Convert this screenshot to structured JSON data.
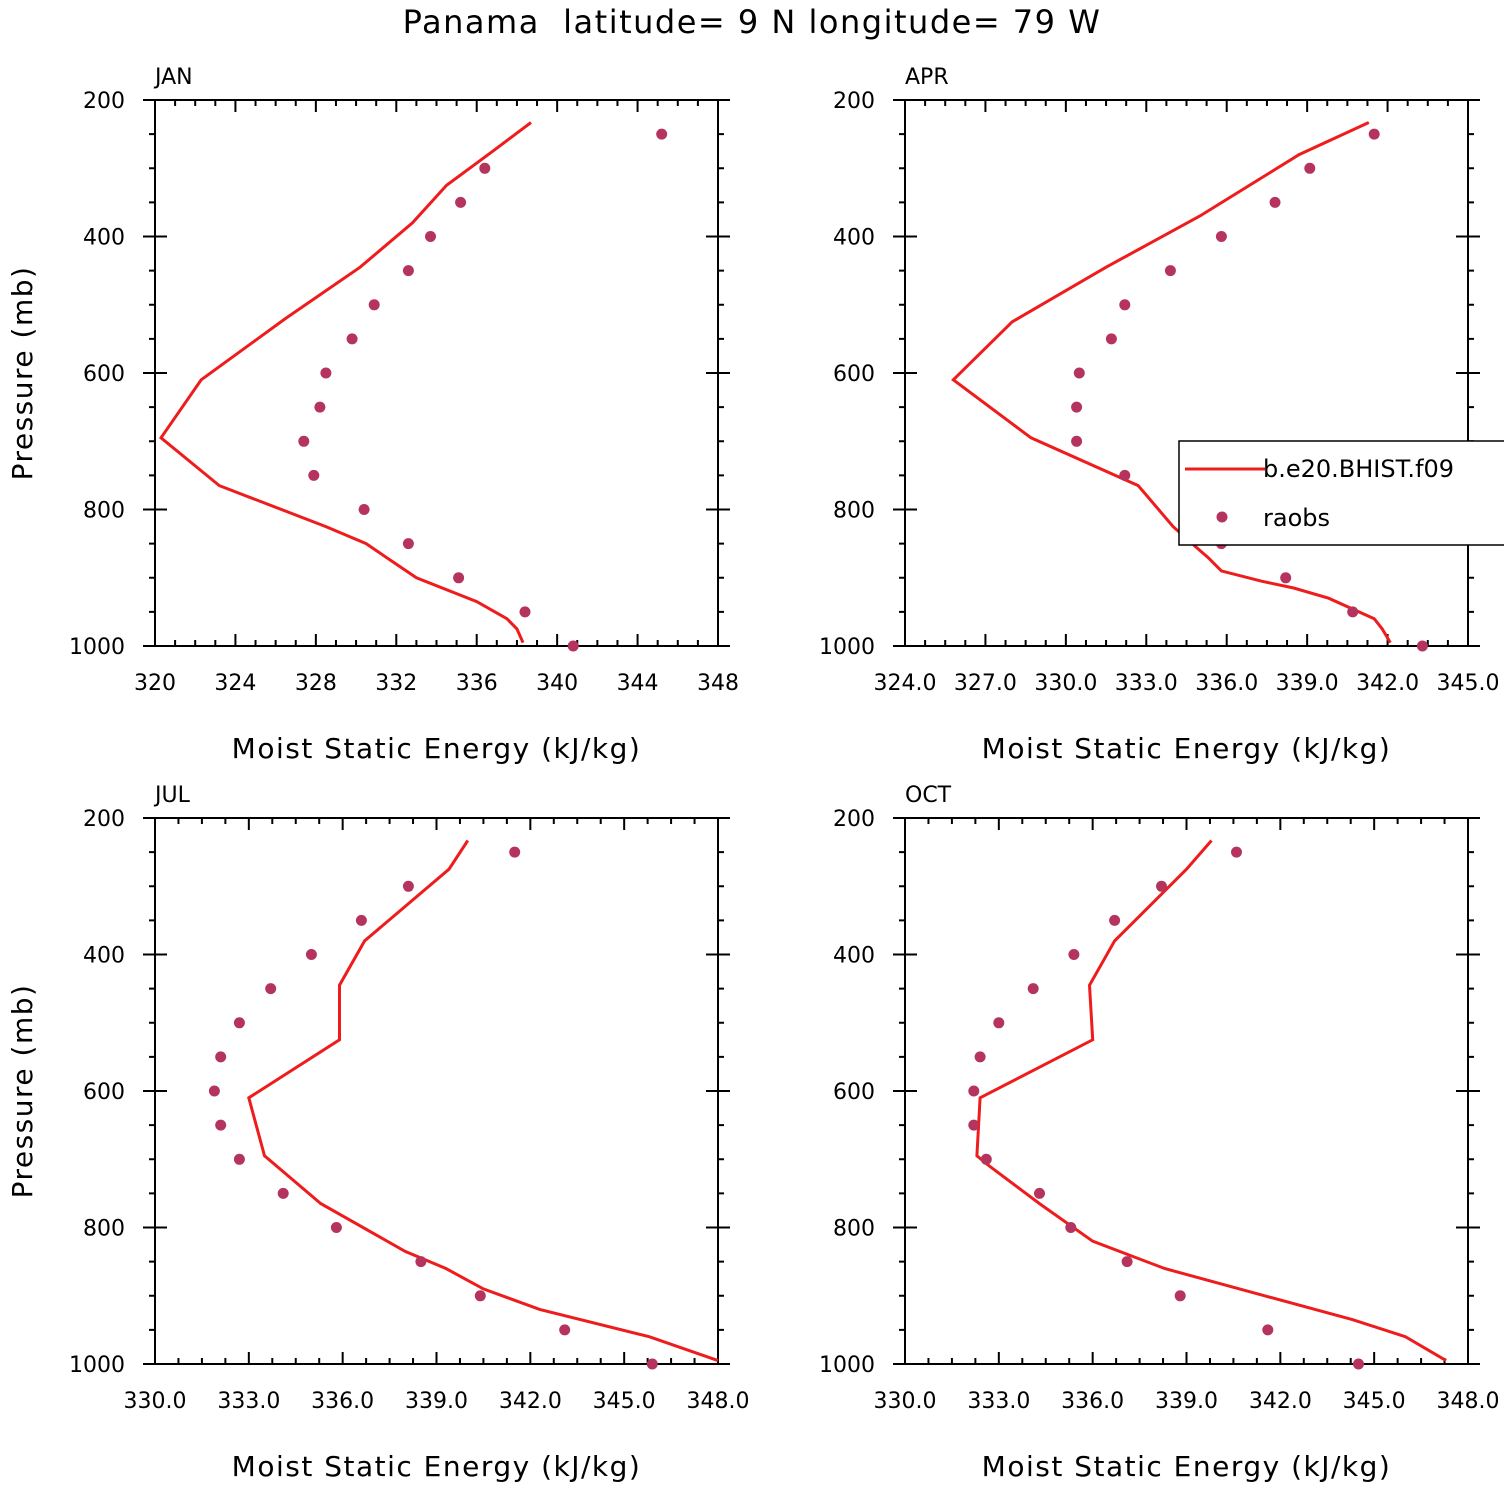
{
  "title": "Panama  latitude= 9 N longitude= 79 W",
  "colors": {
    "model": "#ee1c1c",
    "obs": "#b5345e"
  },
  "chart_data": [
    {
      "type": "line",
      "panel": "JAN",
      "xlabel": "Moist Static Energy (kJ/kg)",
      "ylabel": "Pressure (mb)",
      "xlim": [
        320,
        348
      ],
      "ylim": [
        1000,
        200
      ],
      "xticks": [
        "320",
        "324",
        "328",
        "332",
        "336",
        "340",
        "344",
        "348"
      ],
      "yticks": [
        "200",
        "400",
        "600",
        "800",
        "1000"
      ],
      "series": [
        {
          "name": "b.e20.BHIST.f09",
          "kind": "line",
          "x": [
            338.3,
            338.0,
            337.5,
            336.0,
            333.0,
            331.0,
            330.5,
            328.5,
            323.2,
            320.3,
            322.3,
            326.5,
            330.2,
            332.8,
            334.5,
            336.8,
            338.7
          ],
          "y": [
            995,
            975,
            960,
            935,
            900,
            860,
            850,
            825,
            765,
            695,
            610,
            520,
            445,
            380,
            325,
            275,
            233
          ]
        },
        {
          "name": "raobs",
          "kind": "points",
          "x": [
            340.8,
            338.4,
            335.1,
            332.6,
            330.4,
            327.9,
            327.4,
            328.2,
            328.5,
            329.8,
            330.9,
            332.6,
            333.7,
            335.2,
            336.4,
            345.2
          ],
          "y": [
            1000,
            950,
            900,
            850,
            800,
            750,
            700,
            650,
            600,
            550,
            500,
            450,
            400,
            350,
            300,
            250
          ]
        }
      ]
    },
    {
      "type": "line",
      "panel": "APR",
      "xlabel": "Moist Static Energy (kJ/kg)",
      "ylabel": "",
      "xlim": [
        324,
        345
      ],
      "ylim": [
        1000,
        200
      ],
      "xticks": [
        "324.0",
        "327.0",
        "330.0",
        "333.0",
        "336.0",
        "339.0",
        "342.0",
        "345.0"
      ],
      "yticks": [
        "200",
        "400",
        "600",
        "800",
        "1000"
      ],
      "series": [
        {
          "name": "b.e20.BHIST.f09",
          "kind": "line",
          "x": [
            342.1,
            341.8,
            341.5,
            339.8,
            338.5,
            337.3,
            335.8,
            335.3,
            335.0,
            334.0,
            332.7,
            328.7,
            325.8,
            328.0,
            331.5,
            335.0,
            338.7,
            341.3
          ],
          "y": [
            995,
            975,
            960,
            930,
            915,
            905,
            890,
            870,
            860,
            825,
            765,
            695,
            610,
            525,
            445,
            370,
            280,
            233
          ]
        },
        {
          "name": "raobs",
          "kind": "points",
          "x": [
            343.3,
            340.7,
            338.2,
            335.8,
            334.5,
            332.2,
            330.4,
            330.4,
            330.5,
            331.7,
            332.2,
            333.9,
            335.8,
            337.8,
            339.1,
            341.5
          ],
          "y": [
            1000,
            950,
            900,
            850,
            800,
            750,
            700,
            650,
            600,
            550,
            500,
            450,
            400,
            350,
            300,
            250
          ]
        }
      ],
      "legend": {
        "placement": "right",
        "entries": [
          "b.e20.BHIST.f09",
          "raobs"
        ]
      }
    },
    {
      "type": "line",
      "panel": "JUL",
      "xlabel": "Moist Static Energy (kJ/kg)",
      "ylabel": "Pressure (mb)",
      "xlim": [
        330,
        348
      ],
      "ylim": [
        1000,
        200
      ],
      "xticks": [
        "330.0",
        "333.0",
        "336.0",
        "339.0",
        "342.0",
        "345.0",
        "348.0"
      ],
      "yticks": [
        "200",
        "400",
        "600",
        "800",
        "1000"
      ],
      "series": [
        {
          "name": "b.e20.BHIST.f09",
          "kind": "line",
          "x": [
            348.0,
            345.8,
            342.3,
            340.5,
            339.3,
            338.0,
            335.3,
            333.5,
            333.0,
            335.9,
            335.9,
            336.7,
            339.4,
            340.0
          ],
          "y": [
            995,
            960,
            920,
            890,
            860,
            835,
            765,
            695,
            610,
            525,
            445,
            380,
            275,
            233
          ]
        },
        {
          "name": "raobs",
          "kind": "points",
          "x": [
            345.9,
            343.1,
            340.4,
            338.5,
            335.8,
            334.1,
            332.7,
            332.1,
            331.9,
            332.1,
            332.7,
            333.7,
            335.0,
            336.6,
            338.1,
            341.5
          ],
          "y": [
            1000,
            950,
            900,
            850,
            800,
            750,
            700,
            650,
            600,
            550,
            500,
            450,
            400,
            350,
            300,
            250
          ]
        }
      ]
    },
    {
      "type": "line",
      "panel": "OCT",
      "xlabel": "Moist Static Energy (kJ/kg)",
      "ylabel": "",
      "xlim": [
        330,
        348
      ],
      "ylim": [
        1000,
        200
      ],
      "xticks": [
        "330.0",
        "333.0",
        "336.0",
        "339.0",
        "342.0",
        "345.0",
        "348.0"
      ],
      "yticks": [
        "200",
        "400",
        "600",
        "800",
        "1000"
      ],
      "series": [
        {
          "name": "b.e20.BHIST.f09",
          "kind": "line",
          "x": [
            347.3,
            346.0,
            344.3,
            341.5,
            338.3,
            336.0,
            334.3,
            332.7,
            332.3,
            332.4,
            336.0,
            335.9,
            336.7,
            339.0,
            339.8
          ],
          "y": [
            995,
            960,
            935,
            900,
            860,
            820,
            765,
            710,
            695,
            610,
            525,
            445,
            380,
            275,
            233
          ]
        },
        {
          "name": "raobs",
          "kind": "points",
          "x": [
            344.5,
            341.6,
            338.8,
            337.1,
            335.3,
            334.3,
            332.6,
            332.2,
            332.2,
            332.4,
            333.0,
            334.1,
            335.4,
            336.7,
            338.2,
            340.6
          ],
          "y": [
            1000,
            950,
            900,
            850,
            800,
            750,
            700,
            650,
            600,
            550,
            500,
            450,
            400,
            350,
            300,
            250
          ]
        }
      ]
    }
  ]
}
